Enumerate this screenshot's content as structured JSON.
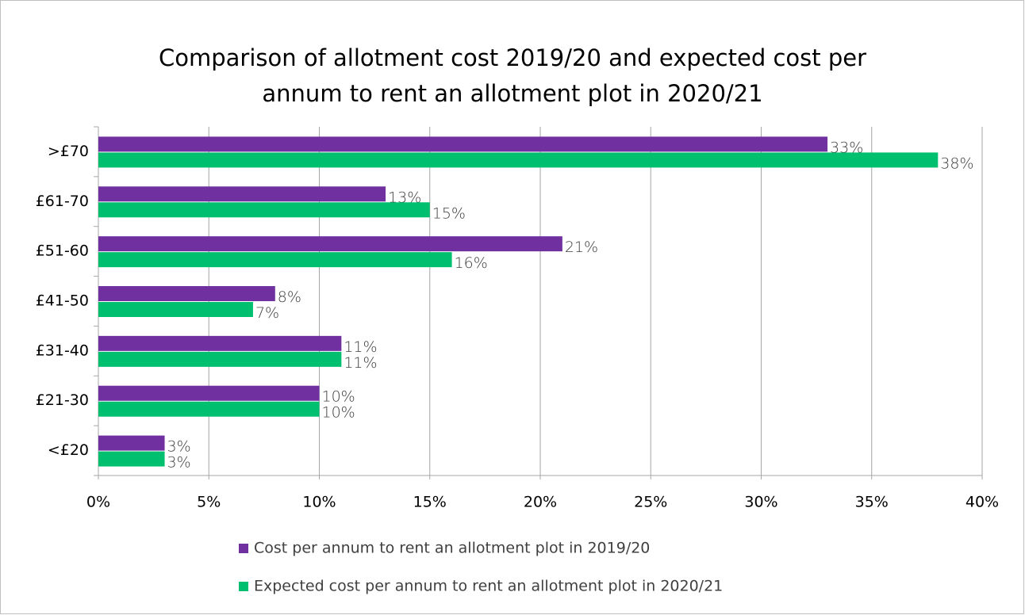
{
  "chart_data": {
    "type": "bar",
    "orientation": "horizontal",
    "title": [
      "Comparison of allotment cost 2019/20 and expected cost per",
      "annum to rent an allotment plot in 2020/21"
    ],
    "categories": [
      ">£70",
      "£61-70",
      "£51-60",
      "£41-50",
      "£31-40",
      "£21-30",
      "<£20"
    ],
    "series": [
      {
        "name": "Cost per annum to rent an allotment plot in 2019/20",
        "color": "#7030a0",
        "values": [
          33,
          13,
          21,
          8,
          11,
          10,
          3
        ],
        "value_labels": [
          "33%",
          "13%",
          "21%",
          "8%",
          "11%",
          "10%",
          "3%"
        ]
      },
      {
        "name": "Expected cost per annum to rent an allotment plot in 2020/21",
        "color": "#00bf6f",
        "values": [
          38,
          15,
          16,
          7,
          11,
          10,
          3
        ],
        "value_labels": [
          "38%",
          "15%",
          "16%",
          "7%",
          "11%",
          "10%",
          "3%"
        ]
      }
    ],
    "xlim": [
      0,
      40
    ],
    "xticks": [
      {
        "value": 0,
        "label": "0%"
      },
      {
        "value": 5,
        "label": "5%"
      },
      {
        "value": 10,
        "label": "10%"
      },
      {
        "value": 15,
        "label": "15%"
      },
      {
        "value": 20,
        "label": "20%"
      },
      {
        "value": 25,
        "label": "25%"
      },
      {
        "value": 30,
        "label": "30%"
      },
      {
        "value": 35,
        "label": "35%"
      },
      {
        "value": 40,
        "label": "40%"
      }
    ],
    "grid": true,
    "legend": "bottom"
  }
}
